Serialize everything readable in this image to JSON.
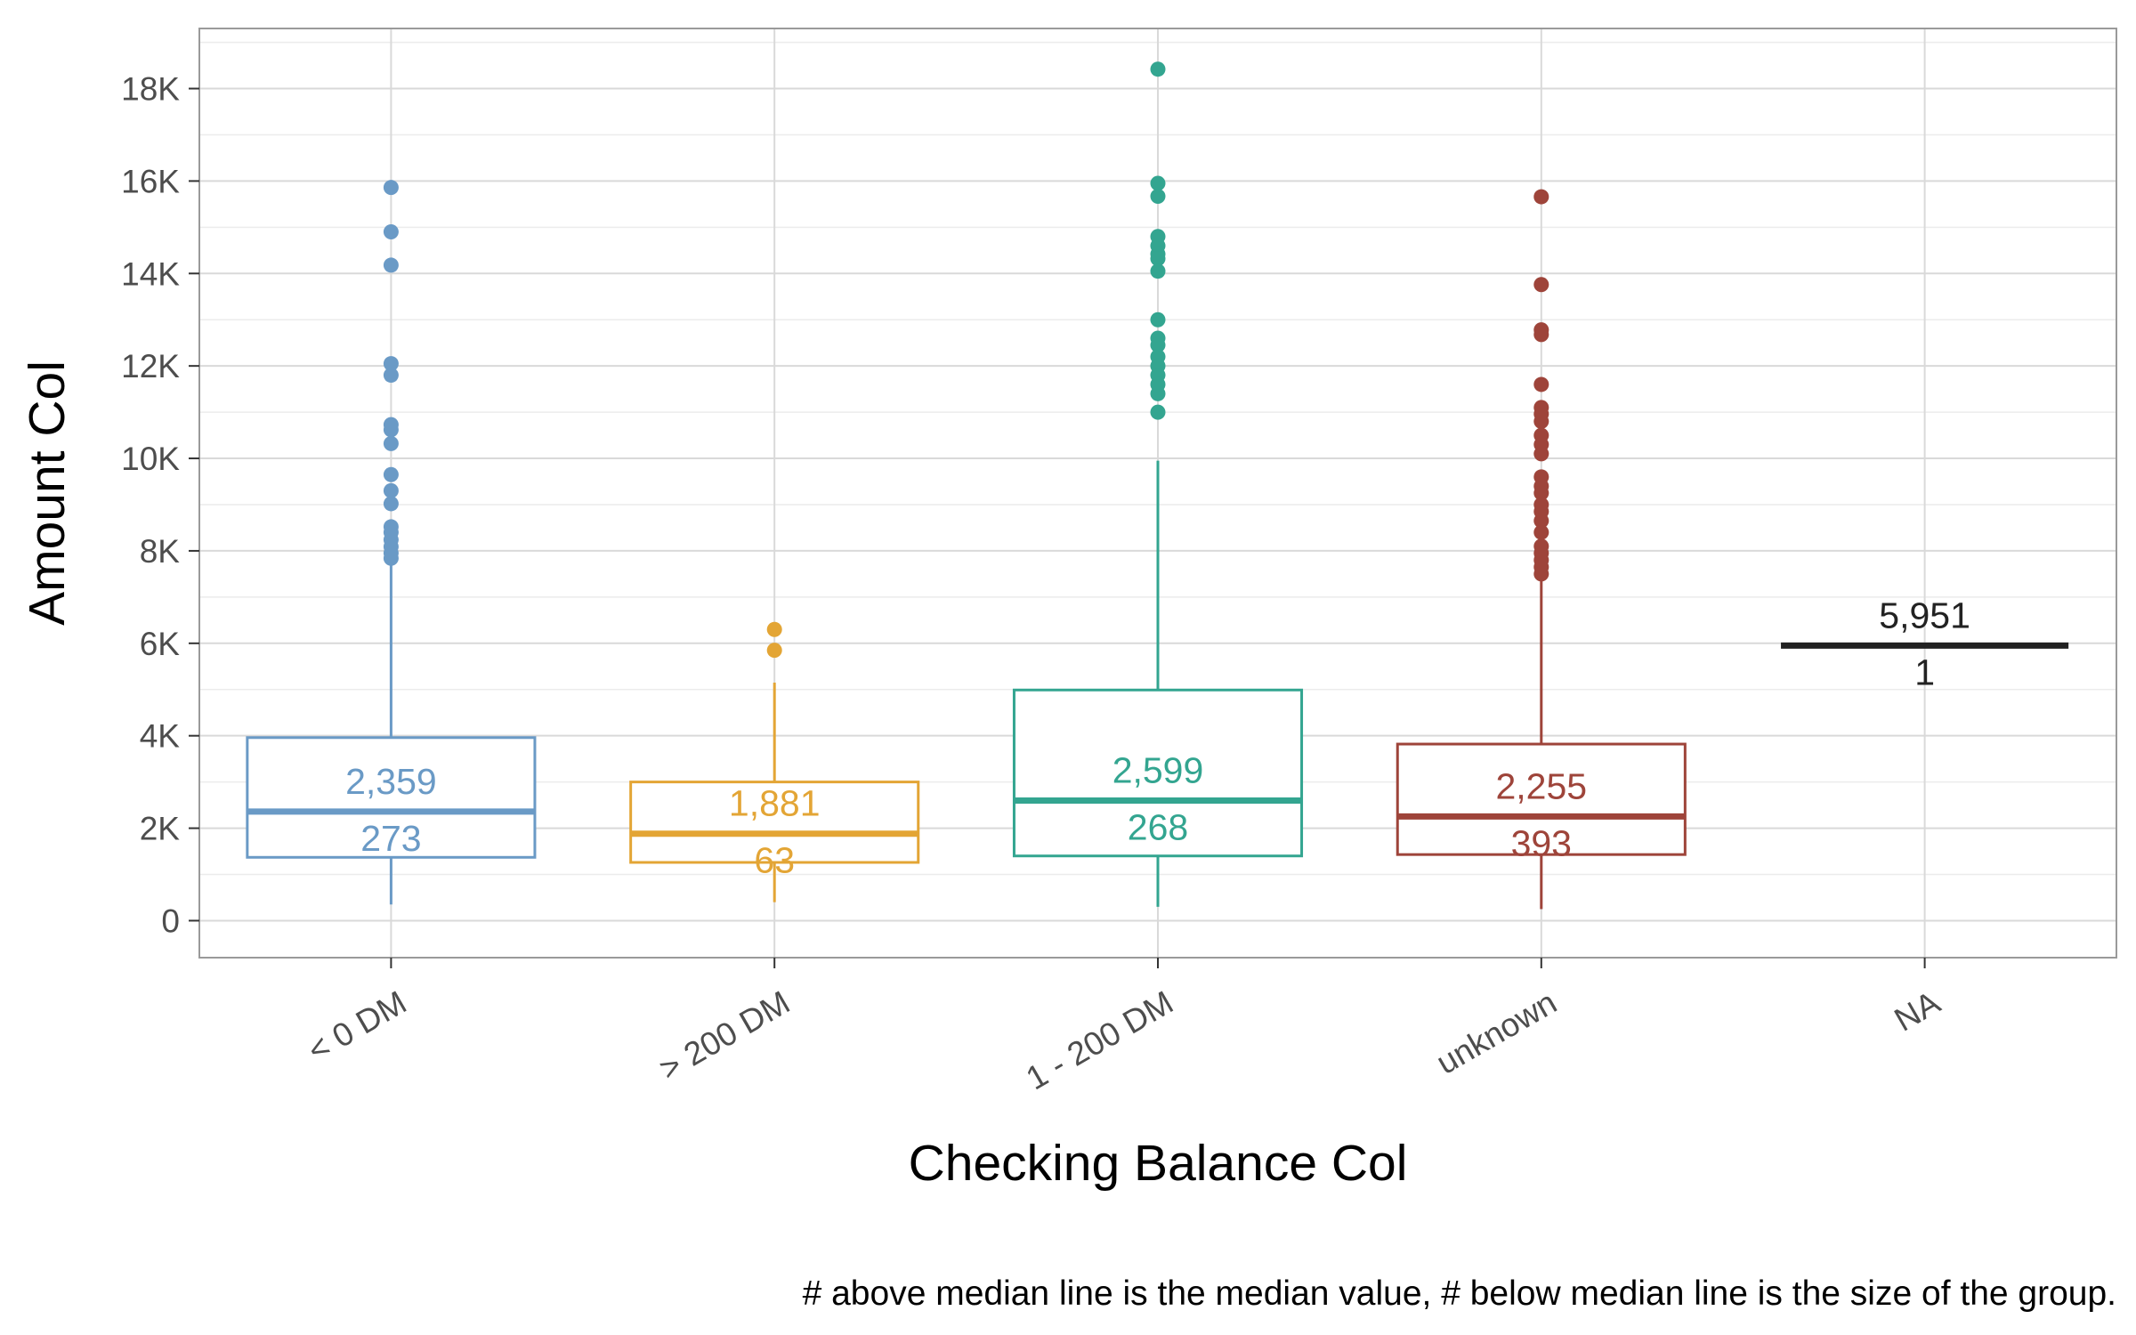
{
  "chart_data": {
    "type": "boxplot",
    "xlabel": "Checking Balance Col",
    "ylabel": "Amount Col",
    "caption": "# above median line is the median value, # below median line is the size of the group.",
    "ylim": [
      -800,
      19300
    ],
    "y_ticks": [
      0,
      2000,
      4000,
      6000,
      8000,
      10000,
      12000,
      14000,
      16000,
      18000
    ],
    "y_tick_labels": [
      "0",
      "2K",
      "4K",
      "6K",
      "8K",
      "10K",
      "12K",
      "14K",
      "16K",
      "18K"
    ],
    "grid": true,
    "categories": [
      "< 0 DM",
      "> 200 DM",
      "1 - 200 DM",
      "unknown",
      "NA"
    ],
    "groups": [
      {
        "category": "< 0 DM",
        "color": "#6a9ac6",
        "min": 350,
        "q1": 1370,
        "median": 2359,
        "q3": 3960,
        "max": 7880,
        "median_label": "2,359",
        "n_label": "273",
        "outliers": [
          15860,
          14900,
          14180,
          12050,
          11800,
          10730,
          10620,
          10320,
          9650,
          9300,
          9020,
          8520,
          8400,
          8240,
          8090,
          7950,
          7840
        ]
      },
      {
        "category": "> 200 DM",
        "color": "#e3a535",
        "min": 400,
        "q1": 1260,
        "median": 1881,
        "q3": 3000,
        "max": 5150,
        "median_label": "1,881",
        "n_label": "63",
        "outliers": [
          6300,
          5850
        ]
      },
      {
        "category": "1 - 200 DM",
        "color": "#33a590",
        "min": 300,
        "q1": 1400,
        "median": 2599,
        "q3": 4990,
        "max": 9950,
        "median_label": "2,599",
        "n_label": "268",
        "outliers": [
          18420,
          15950,
          15670,
          14800,
          14600,
          14420,
          14320,
          14050,
          13000,
          12600,
          12450,
          12200,
          12000,
          11800,
          11600,
          11400,
          11000
        ]
      },
      {
        "category": "unknown",
        "color": "#9e443a",
        "min": 250,
        "q1": 1430,
        "median": 2255,
        "q3": 3820,
        "max": 7480,
        "median_label": "2,255",
        "n_label": "393",
        "outliers": [
          15660,
          13760,
          12780,
          12680,
          11600,
          11100,
          10960,
          10800,
          10500,
          10300,
          10100,
          9600,
          9400,
          9250,
          9000,
          8850,
          8650,
          8400,
          8100,
          7950,
          7800,
          7650,
          7500
        ]
      },
      {
        "category": "NA",
        "color": "#222222",
        "min": 5951,
        "q1": 5951,
        "median": 5951,
        "q3": 5951,
        "max": 5951,
        "median_label": "5,951",
        "n_label": "1",
        "outliers": []
      }
    ]
  }
}
